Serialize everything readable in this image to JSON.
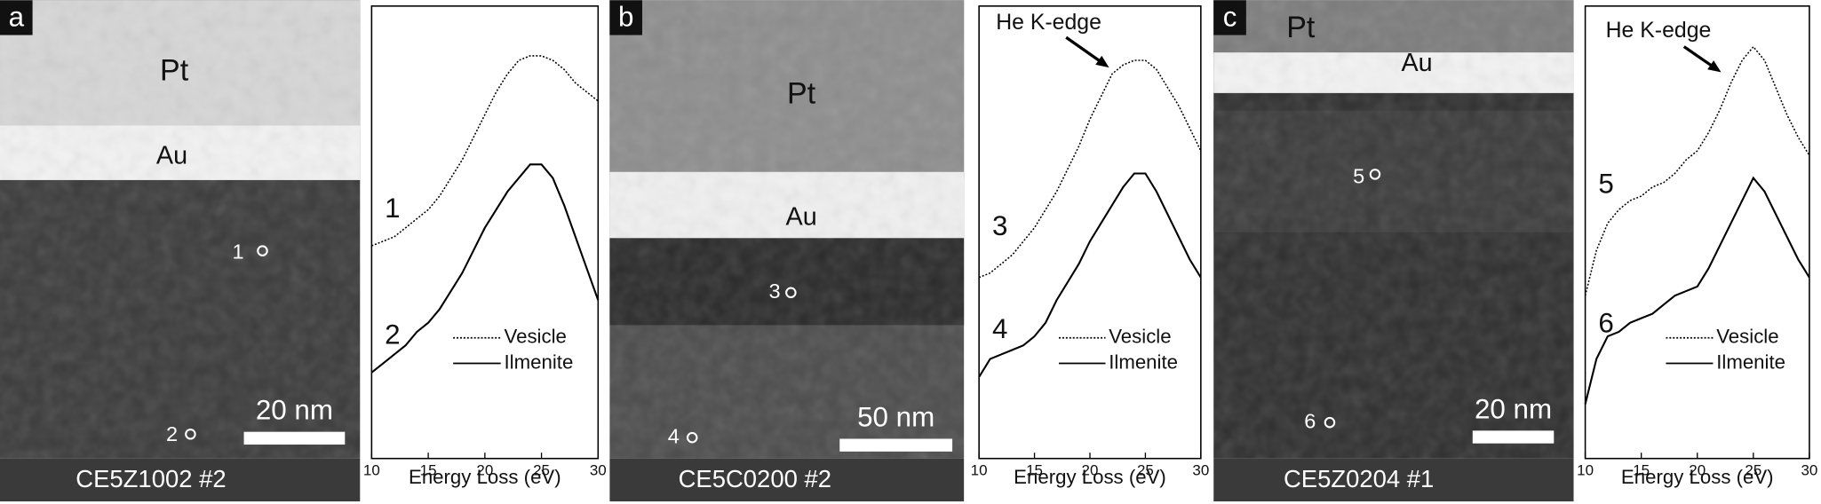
{
  "images": [
    {
      "letter": "a",
      "caption": "CE5Z1002 #2",
      "scale_bar": "20 nm",
      "labels": [
        "Pt",
        "Au"
      ],
      "points": [
        "1",
        "2"
      ]
    },
    {
      "letter": "b",
      "caption": "CE5C0200 #2",
      "scale_bar": "50 nm",
      "labels": [
        "Pt",
        "Au"
      ],
      "points": [
        "3",
        "4"
      ]
    },
    {
      "letter": "c",
      "caption": "CE5Z0204 #1",
      "scale_bar": "20 nm",
      "labels": [
        "Pt",
        "Au"
      ],
      "points": [
        "5",
        "6"
      ]
    }
  ],
  "chart_data": [
    {
      "type": "line",
      "xlabel": "Energy Loss (eV)",
      "x": [
        10,
        11,
        12,
        13,
        14,
        15,
        16,
        17,
        18,
        19,
        20,
        21,
        22,
        23,
        24,
        25,
        26,
        27,
        28,
        29,
        30
      ],
      "xlim": [
        10,
        30
      ],
      "xticks": [
        10,
        15,
        20,
        25,
        30
      ],
      "ylim": [
        0,
        100
      ],
      "series": [
        {
          "name": "Vesicle",
          "label": "1",
          "color": "#000000",
          "style": "dotted",
          "values": [
            47,
            48,
            49,
            51,
            53,
            55,
            58,
            62,
            66,
            71,
            76,
            81,
            85,
            88,
            89,
            89,
            88,
            86,
            83,
            81,
            79
          ]
        },
        {
          "name": "Ilmenite",
          "label": "2",
          "color": "#000000",
          "style": "solid",
          "values": [
            19,
            21,
            23,
            25,
            28,
            30,
            33,
            37,
            41,
            46,
            51,
            55,
            59,
            62,
            65,
            65,
            62,
            56,
            49,
            42,
            35
          ]
        }
      ]
    },
    {
      "type": "line",
      "xlabel": "Energy Loss (eV)",
      "annotation": "He K-edge",
      "x": [
        10,
        11,
        12,
        13,
        14,
        15,
        16,
        17,
        18,
        19,
        20,
        21,
        22,
        23,
        24,
        25,
        26,
        27,
        28,
        29,
        30
      ],
      "xlim": [
        10,
        30
      ],
      "xticks": [
        10,
        15,
        20,
        25,
        30
      ],
      "ylim": [
        0,
        100
      ],
      "series": [
        {
          "name": "Vesicle",
          "label": "3",
          "color": "#000000",
          "style": "dotted",
          "values": [
            40,
            41,
            43,
            45,
            48,
            51,
            55,
            59,
            64,
            69,
            75,
            80,
            85,
            87,
            88,
            88,
            86,
            82,
            78,
            73,
            68
          ]
        },
        {
          "name": "Ilmenite",
          "label": "4",
          "color": "#000000",
          "style": "solid",
          "values": [
            18,
            22,
            23,
            24,
            25,
            27,
            30,
            35,
            39,
            43,
            48,
            52,
            56,
            60,
            63,
            63,
            59,
            54,
            49,
            44,
            40
          ]
        }
      ]
    },
    {
      "type": "line",
      "xlabel": "Energy Loss (eV)",
      "annotation": "He K-edge",
      "x": [
        10,
        11,
        12,
        13,
        14,
        15,
        16,
        17,
        18,
        19,
        20,
        21,
        22,
        23,
        24,
        25,
        26,
        27,
        28,
        29,
        30
      ],
      "xlim": [
        10,
        30
      ],
      "xticks": [
        10,
        15,
        20,
        25,
        30
      ],
      "ylim": [
        0,
        100
      ],
      "series": [
        {
          "name": "Vesicle",
          "label": "5",
          "color": "#000000",
          "style": "dotted",
          "values": [
            36,
            46,
            52,
            55,
            57,
            58,
            60,
            61,
            63,
            66,
            68,
            72,
            77,
            83,
            88,
            91,
            88,
            82,
            76,
            71,
            67
          ]
        },
        {
          "name": "Ilmenite",
          "label": "6",
          "color": "#000000",
          "style": "solid",
          "values": [
            12,
            22,
            27,
            28,
            30,
            31,
            32,
            34,
            36,
            37,
            38,
            42,
            47,
            52,
            57,
            62,
            59,
            54,
            49,
            44,
            40
          ]
        }
      ]
    }
  ]
}
